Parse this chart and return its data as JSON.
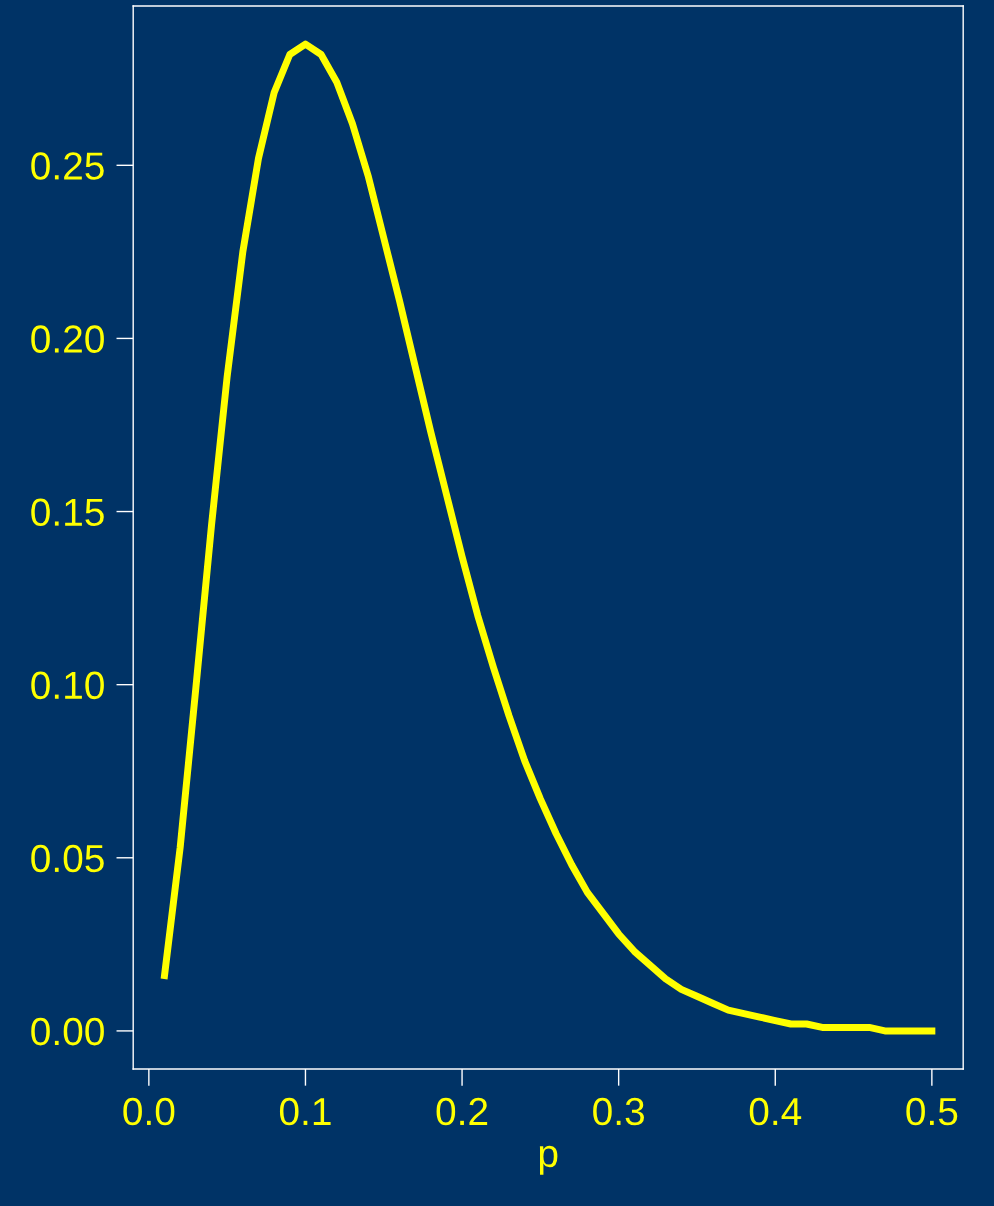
{
  "chart_data": {
    "type": "line",
    "xlabel": "p",
    "x": [
      0.01,
      0.02,
      0.03,
      0.04,
      0.05,
      0.06,
      0.07,
      0.08,
      0.09,
      0.1,
      0.11,
      0.12,
      0.13,
      0.14,
      0.15,
      0.16,
      0.17,
      0.18,
      0.19,
      0.2,
      0.21,
      0.22,
      0.23,
      0.24,
      0.25,
      0.26,
      0.27,
      0.28,
      0.29,
      0.3,
      0.31,
      0.32,
      0.33,
      0.34,
      0.35,
      0.36,
      0.37,
      0.38,
      0.39,
      0.4,
      0.41,
      0.42,
      0.43,
      0.44,
      0.45,
      0.46,
      0.47,
      0.48,
      0.49,
      0.5
    ],
    "series": [
      {
        "color": "#ffff00",
        "values": [
          0.016,
          0.053,
          0.099,
          0.146,
          0.189,
          0.225,
          0.252,
          0.271,
          0.282,
          0.285,
          0.282,
          0.274,
          0.262,
          0.247,
          0.229,
          0.211,
          0.192,
          0.173,
          0.155,
          0.137,
          0.12,
          0.105,
          0.091,
          0.078,
          0.067,
          0.057,
          0.048,
          0.04,
          0.034,
          0.028,
          0.023,
          0.019,
          0.015,
          0.012,
          0.01,
          0.008,
          0.006,
          0.005,
          0.004,
          0.003,
          0.002,
          0.002,
          0.001,
          0.001,
          0.001,
          0.001,
          0.0,
          0.0,
          0.0,
          0.0
        ]
      }
    ],
    "xlim": [
      -0.01,
      0.52
    ],
    "ylim": [
      -0.011,
      0.296
    ],
    "xticks": [
      {
        "value": 0,
        "label": "0.0"
      },
      0.1,
      0.2,
      0.3,
      0.4,
      0.5
    ],
    "yticks": [
      {
        "value": 0,
        "label": "0.00"
      },
      0.05,
      {
        "value": 0.1,
        "label": "0.10"
      },
      0.15,
      {
        "value": 0.2,
        "label": "0.20"
      },
      0.25
    ],
    "grid": false,
    "legend": false,
    "marker": "none",
    "line_style": "solid"
  }
}
